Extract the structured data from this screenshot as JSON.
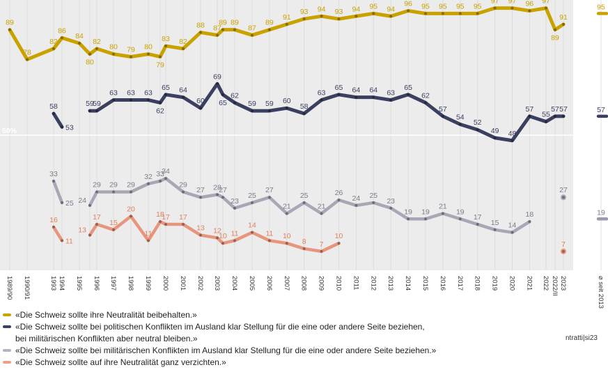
{
  "chart_data": {
    "type": "line",
    "title": "",
    "xlabel": "",
    "ylabel": "",
    "ylim": [
      0,
      100
    ],
    "reference_line": {
      "value": 50,
      "label": "50%"
    },
    "grid": "vertical",
    "legend_placement": "bottom",
    "categories": [
      "1989/90",
      "1990/91",
      "1993",
      "1994",
      "1995",
      "",
      "1996",
      "1997",
      "1998",
      "1999",
      "",
      "2000",
      "2001",
      "2002",
      "2003",
      "",
      "2004",
      "2005",
      "2006",
      "2007",
      "2008",
      "2009",
      "2010",
      "2011",
      "2012",
      "2013",
      "2014",
      "2015",
      "2016",
      "2017",
      "2018",
      "2019",
      "2020",
      "2021",
      "2022",
      "2022/II",
      "2023"
    ],
    "series": [
      {
        "name": "«Die Schweiz sollte ihre Neutralität beibehalten.»",
        "color": "#c9a200",
        "values": [
          89,
          78,
          82,
          86,
          84,
          80,
          82,
          80,
          79,
          80,
          79,
          83,
          82,
          88,
          87,
          89,
          89,
          87,
          89,
          91,
          93,
          94,
          93,
          94,
          95,
          94,
          96,
          95,
          95,
          95,
          95,
          97,
          97,
          96,
          97,
          89,
          91
        ]
      },
      {
        "name": "«Die Schweiz sollte bei politischen Konflikten im Ausland klar Stellung für die eine oder andere Seite beziehen,\nbei militärischen Konflikten aber neutral bleiben.»",
        "color": "#3b4060",
        "values": [
          null,
          null,
          58,
          53,
          null,
          59,
          59,
          63,
          63,
          63,
          62,
          65,
          64,
          60,
          69,
          65,
          62,
          59,
          59,
          60,
          58,
          63,
          65,
          64,
          64,
          63,
          65,
          62,
          57,
          54,
          52,
          49,
          48,
          57,
          55,
          57,
          57
        ]
      },
      {
        "name": "«Die Schweiz sollte bei militärischen Konflikten im Ausland klar Stellung für die eine oder andere Seite beziehen.»",
        "color": "#9d9bab",
        "values": [
          null,
          null,
          33,
          25,
          null,
          24,
          29,
          29,
          29,
          32,
          33,
          34,
          29,
          27,
          28,
          27,
          23,
          25,
          27,
          21,
          25,
          21,
          26,
          24,
          25,
          23,
          19,
          19,
          21,
          19,
          17,
          15,
          14,
          18,
          null,
          null,
          27
        ]
      },
      {
        "name": "«Die Schweiz sollte auf ihre Neutralität ganz verzichten.»",
        "color": "#e8866a",
        "values": [
          null,
          null,
          16,
          11,
          null,
          13,
          17,
          15,
          20,
          11,
          18,
          17,
          17,
          13,
          12,
          10,
          11,
          14,
          11,
          10,
          8,
          7,
          10,
          null,
          null,
          null,
          null,
          null,
          null,
          null,
          null,
          null,
          null,
          null,
          null,
          null,
          7
        ]
      }
    ],
    "summary": {
      "label": "⌀ seit 2013",
      "values": [
        95,
        57,
        19
      ]
    }
  },
  "source": "ntratti|si23"
}
